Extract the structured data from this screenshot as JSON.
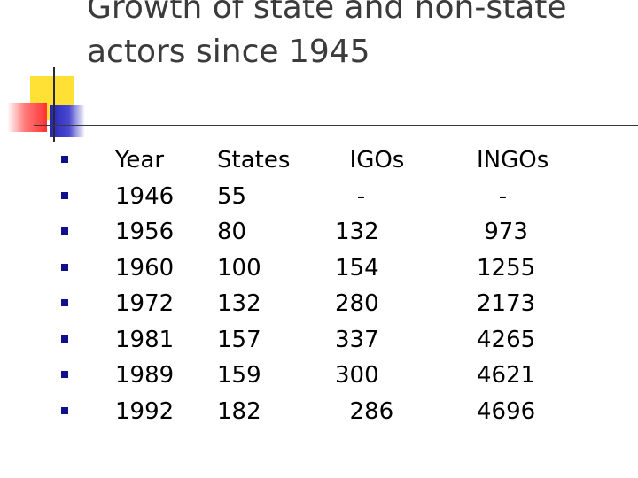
{
  "slide": {
    "title_line1": "Growth of state and non-state",
    "title_line2": "actors since 1945",
    "bullet_color": "#10108a",
    "rows": [
      {
        "year": "Year",
        "states": "States",
        "igos": "  IGOs",
        "ingos": "INGOs"
      },
      {
        "year": "1946",
        "states": "55",
        "igos": "   -",
        "ingos": "   -"
      },
      {
        "year": "1956",
        "states": "80",
        "igos": "132",
        "ingos": " 973"
      },
      {
        "year": "1960",
        "states": "100",
        "igos": "154",
        "ingos": "1255"
      },
      {
        "year": "1972",
        "states": "132",
        "igos": "280",
        "ingos": "2173"
      },
      {
        "year": "1981",
        "states": "157",
        "igos": "337",
        "ingos": "4265"
      },
      {
        "year": "1989",
        "states": "159",
        "igos": "300",
        "ingos": "4621"
      },
      {
        "year": "1992",
        "states": "182",
        "igos": "  286",
        "ingos": "4696"
      }
    ]
  }
}
